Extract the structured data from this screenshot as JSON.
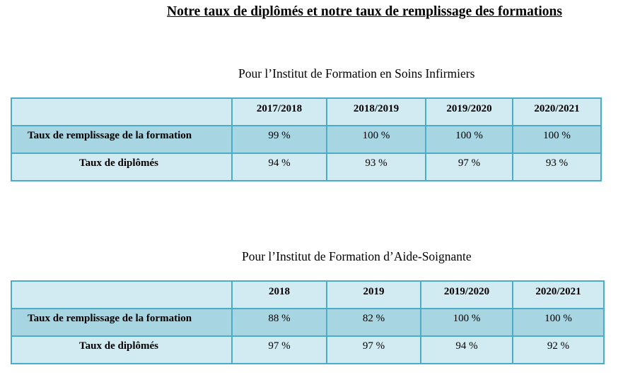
{
  "title": "Notre taux de diplômés et notre taux de remplissage des formations",
  "tables": [
    {
      "subtitle": "Pour l’Institut de Formation en Soins Infirmiers",
      "headers": [
        "",
        "2017/2018",
        "2018/2019",
        "2019/2020",
        "2020/2021"
      ],
      "rows": [
        {
          "label": "Taux de remplissage de la formation",
          "values": [
            "99 %",
            "100 %",
            "100 %",
            "100 %"
          ]
        },
        {
          "label": "Taux de diplômés",
          "values": [
            "94 %",
            "93 %",
            "97 %",
            "93 %"
          ]
        }
      ]
    },
    {
      "subtitle": "Pour l’Institut de Formation d’Aide-Soignante",
      "headers": [
        "",
        "2018",
        "2019",
        "2019/2020",
        "2020/2021"
      ],
      "rows": [
        {
          "label": "Taux de remplissage de la formation",
          "values": [
            "88 %",
            "82 %",
            "100 %",
            "100 %"
          ]
        },
        {
          "label": "Taux de diplômés",
          "values": [
            "97 %",
            "97 %",
            "94 %",
            "92 %"
          ]
        }
      ]
    }
  ],
  "colors": {
    "border": "#4bacc6",
    "header_bg": "#d2eaf2",
    "row_dark": "#a7d5e2",
    "row_light": "#d2eaf2"
  }
}
